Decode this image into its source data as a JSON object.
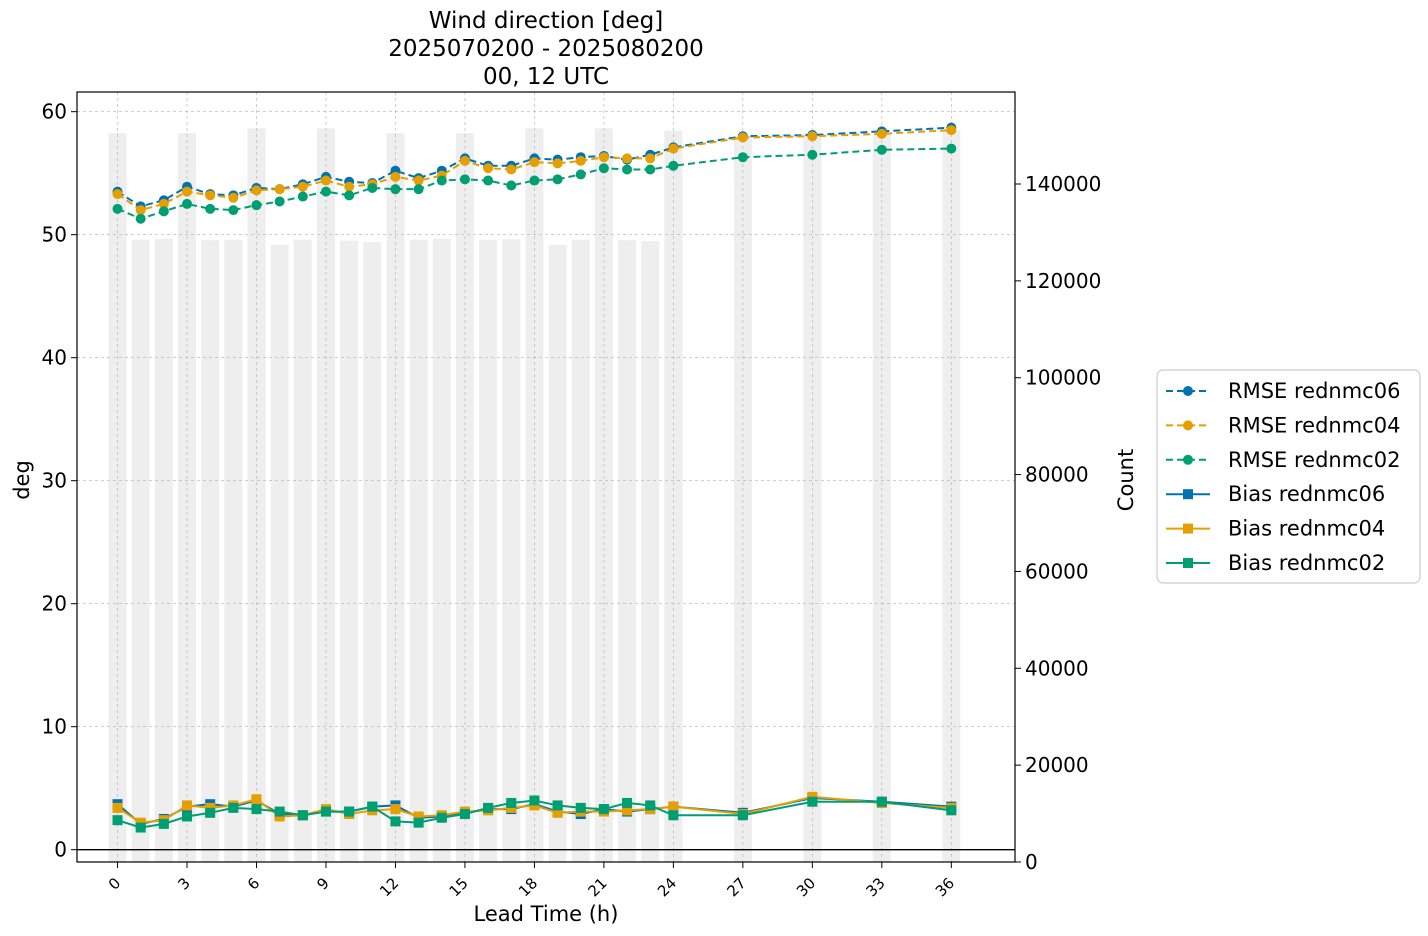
{
  "chart_data": {
    "type": "line",
    "title_lines": [
      "Wind direction [deg]",
      "2025070200 - 2025080200",
      "00, 12 UTC"
    ],
    "xlabel": "Lead Time (h)",
    "ylabel": "deg",
    "y2label": "Count",
    "xlim": [
      -1.75,
      38.75
    ],
    "ylim": [
      -1,
      61.6
    ],
    "y2lim": [
      0,
      159000
    ],
    "xticks": [
      0,
      3,
      6,
      9,
      12,
      15,
      18,
      21,
      24,
      27,
      30,
      33,
      36
    ],
    "yticks": [
      0,
      10,
      20,
      30,
      40,
      50,
      60
    ],
    "y2ticks": [
      0,
      20000,
      40000,
      60000,
      80000,
      100000,
      120000,
      140000
    ],
    "grid": true,
    "legend_position": "outside-right",
    "counts": {
      "x": [
        0,
        1,
        2,
        3,
        4,
        5,
        6,
        7,
        8,
        9,
        10,
        11,
        12,
        13,
        14,
        15,
        16,
        17,
        18,
        19,
        20,
        21,
        22,
        23,
        24,
        27,
        30,
        33,
        36
      ],
      "values": [
        150500,
        128500,
        128700,
        150500,
        128400,
        128500,
        151500,
        127400,
        128500,
        151500,
        128300,
        128000,
        150500,
        128500,
        128700,
        150500,
        128500,
        128600,
        151500,
        127400,
        128500,
        151500,
        128400,
        128200,
        151000,
        150000,
        150500,
        150200,
        151000
      ],
      "color": "#eeeeee"
    },
    "x": [
      0,
      1,
      2,
      3,
      4,
      5,
      6,
      7,
      8,
      9,
      10,
      11,
      12,
      13,
      14,
      15,
      16,
      17,
      18,
      19,
      20,
      21,
      22,
      23,
      24,
      27,
      30,
      33,
      36
    ],
    "series": [
      {
        "name": "RMSE rednmc06",
        "color": "#0072b2",
        "linestyle": "dashed",
        "marker": "circle",
        "values": [
          53.5,
          52.3,
          52.8,
          53.9,
          53.3,
          53.2,
          53.8,
          53.7,
          54.1,
          54.7,
          54.3,
          54.2,
          55.2,
          54.6,
          55.2,
          56.2,
          55.6,
          55.6,
          56.2,
          56.1,
          56.3,
          56.4,
          56.1,
          56.5,
          57.1,
          58.0,
          58.1,
          58.4,
          58.7
        ]
      },
      {
        "name": "RMSE rednmc04",
        "color": "#e69f00",
        "linestyle": "dashed",
        "marker": "circle",
        "values": [
          53.3,
          52.0,
          52.5,
          53.5,
          53.2,
          53.0,
          53.6,
          53.7,
          53.9,
          54.4,
          53.9,
          54.1,
          54.7,
          54.4,
          54.8,
          56.0,
          55.4,
          55.3,
          55.9,
          55.8,
          56.0,
          56.3,
          56.2,
          56.2,
          57.0,
          57.9,
          58.0,
          58.2,
          58.5
        ]
      },
      {
        "name": "RMSE rednmc02",
        "color": "#009e73",
        "linestyle": "dashed",
        "marker": "circle",
        "values": [
          52.1,
          51.3,
          51.9,
          52.5,
          52.1,
          52.0,
          52.4,
          52.7,
          53.1,
          53.5,
          53.2,
          53.8,
          53.7,
          53.7,
          54.4,
          54.5,
          54.4,
          54.0,
          54.4,
          54.5,
          54.9,
          55.4,
          55.3,
          55.3,
          55.6,
          56.3,
          56.5,
          56.9,
          57.0
        ]
      },
      {
        "name": "Bias rednmc06",
        "color": "#0072b2",
        "linestyle": "solid",
        "marker": "square",
        "values": [
          3.7,
          2.1,
          2.5,
          3.5,
          3.7,
          3.5,
          4.0,
          2.9,
          2.8,
          3.1,
          3.1,
          3.5,
          3.6,
          2.6,
          2.7,
          3.0,
          3.3,
          3.3,
          3.7,
          3.1,
          2.9,
          3.3,
          3.1,
          3.3,
          3.5,
          3.0,
          4.2,
          3.9,
          3.5
        ]
      },
      {
        "name": "Bias rednmc04",
        "color": "#e69f00",
        "linestyle": "solid",
        "marker": "square",
        "values": [
          3.4,
          2.2,
          2.4,
          3.6,
          3.4,
          3.6,
          4.1,
          2.7,
          2.8,
          3.3,
          2.9,
          3.2,
          3.3,
          2.7,
          2.8,
          3.1,
          3.2,
          3.4,
          3.6,
          3.0,
          3.1,
          3.1,
          3.2,
          3.3,
          3.5,
          2.9,
          4.3,
          3.8,
          3.4
        ]
      },
      {
        "name": "Bias rednmc02",
        "color": "#009e73",
        "linestyle": "solid",
        "marker": "square",
        "values": [
          2.4,
          1.8,
          2.1,
          2.7,
          3.0,
          3.4,
          3.3,
          3.1,
          2.8,
          3.1,
          3.1,
          3.5,
          2.3,
          2.2,
          2.6,
          2.9,
          3.4,
          3.8,
          4.0,
          3.6,
          3.4,
          3.3,
          3.8,
          3.6,
          2.8,
          2.8,
          3.9,
          3.9,
          3.2
        ]
      }
    ]
  }
}
